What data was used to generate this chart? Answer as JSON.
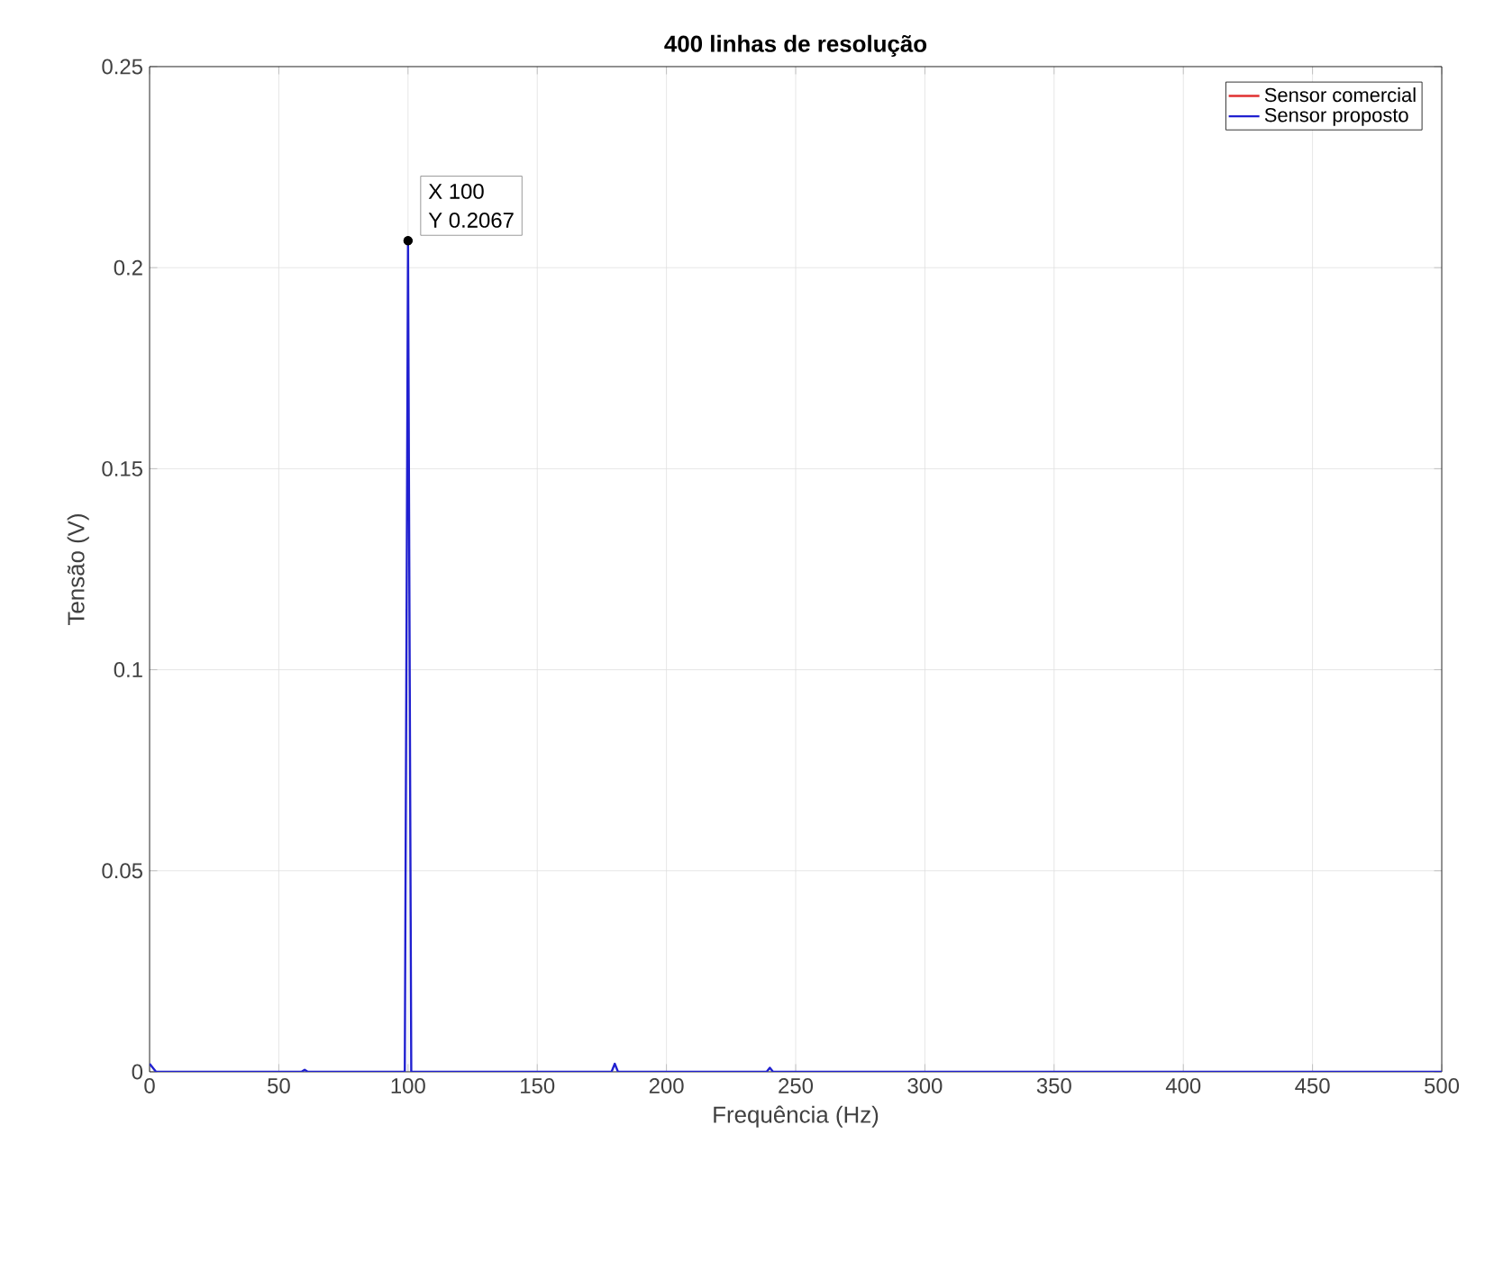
{
  "chart_data": {
    "type": "line",
    "title": "400 linhas de resolução",
    "xlabel": "Frequência (Hz)",
    "ylabel": "Tensão (V)",
    "xlim": [
      0,
      500
    ],
    "xticks": [
      0,
      50,
      100,
      150,
      200,
      250,
      300,
      350,
      400,
      450,
      500
    ],
    "ylim": [
      0,
      0.25
    ],
    "yticks": [
      0,
      0.05,
      0.1,
      0.15,
      0.2,
      0.25
    ],
    "grid": true,
    "legend": "top right",
    "series": [
      {
        "name": "Sensor comercial",
        "color": "#e03030"
      },
      {
        "name": "Sensor proposto",
        "color": "#2020d0",
        "x": [
          0,
          1.25,
          2.5,
          58.75,
          60,
          61.25,
          98.75,
          100,
          101.25,
          178.75,
          180,
          181.25,
          238.75,
          240,
          241.25,
          500
        ],
        "values": [
          0.002,
          0.001,
          0,
          0,
          0.0005,
          0,
          0,
          0.2067,
          0,
          0,
          0.002,
          0,
          0,
          0.001,
          0,
          0
        ]
      }
    ],
    "annotations": [
      {
        "text": "X 100",
        "x": 100,
        "y": 0.2067
      },
      {
        "text": "Y 0.2067",
        "x": 100,
        "y": 0.2067
      }
    ]
  }
}
